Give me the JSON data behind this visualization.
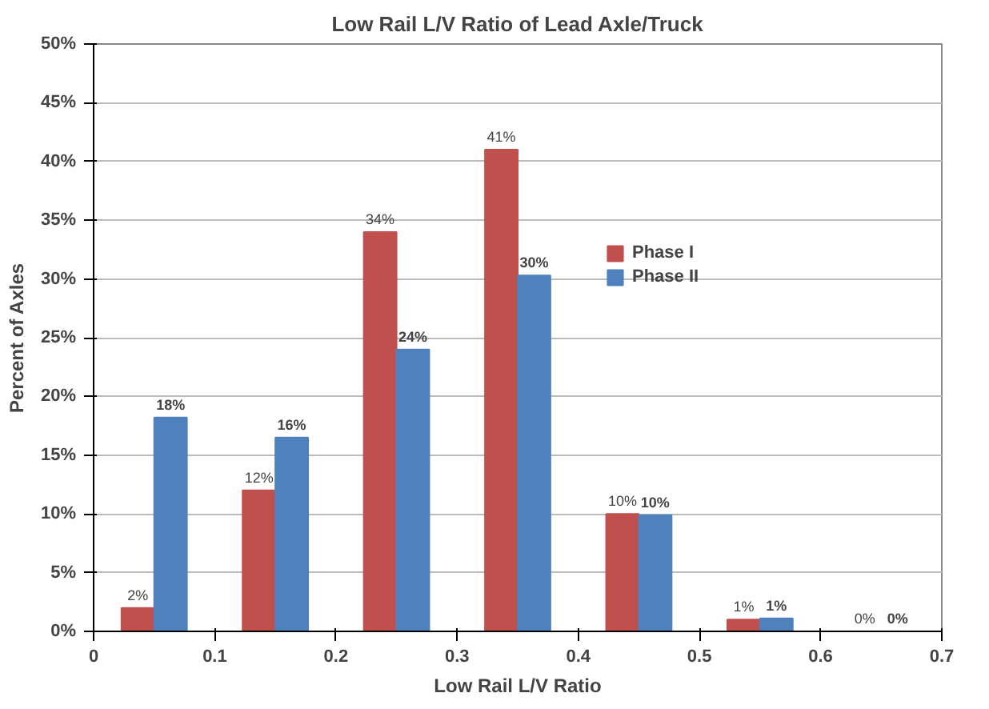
{
  "chart_data": {
    "type": "bar",
    "title": "Low Rail L/V Ratio of Lead Axle/Truck",
    "xlabel": "Low Rail L/V Ratio",
    "ylabel": "Percent of Axles",
    "x": [
      0.05,
      0.15,
      0.25,
      0.35,
      0.45,
      0.55,
      0.65
    ],
    "series": [
      {
        "name": "Phase I",
        "color": "#c0504d",
        "values": [
          2,
          12,
          34,
          41,
          10,
          1,
          0
        ],
        "value_labels": [
          "2%",
          "12%",
          "34%",
          "41%",
          "10%",
          "1%",
          "0%"
        ]
      },
      {
        "name": "Phase II",
        "color": "#4f81bd",
        "values": [
          18.2,
          16.5,
          24,
          30.3,
          9.9,
          1.1,
          0
        ],
        "value_labels": [
          "18%",
          "16%",
          "24%",
          "30%",
          "10%",
          "1%",
          "0%"
        ]
      }
    ],
    "xlim": [
      0,
      0.7
    ],
    "xticks": [
      0,
      0.1,
      0.2,
      0.3,
      0.4,
      0.5,
      0.6,
      0.7
    ],
    "ylim": [
      0,
      50
    ],
    "yticks": [
      {
        "value": 0,
        "label": "0%"
      },
      {
        "value": 5,
        "label": "5%"
      },
      {
        "value": 10,
        "label": "10%"
      },
      {
        "value": 15,
        "label": "15%"
      },
      {
        "value": 20,
        "label": "20%"
      },
      {
        "value": 25,
        "label": "25%"
      },
      {
        "value": 30,
        "label": "30%"
      },
      {
        "value": 35,
        "label": "35%"
      },
      {
        "value": 40,
        "label": "40%"
      },
      {
        "value": 45,
        "label": "45%"
      },
      {
        "value": 50,
        "label": "50%"
      }
    ],
    "grid": "y",
    "legend": "right"
  }
}
